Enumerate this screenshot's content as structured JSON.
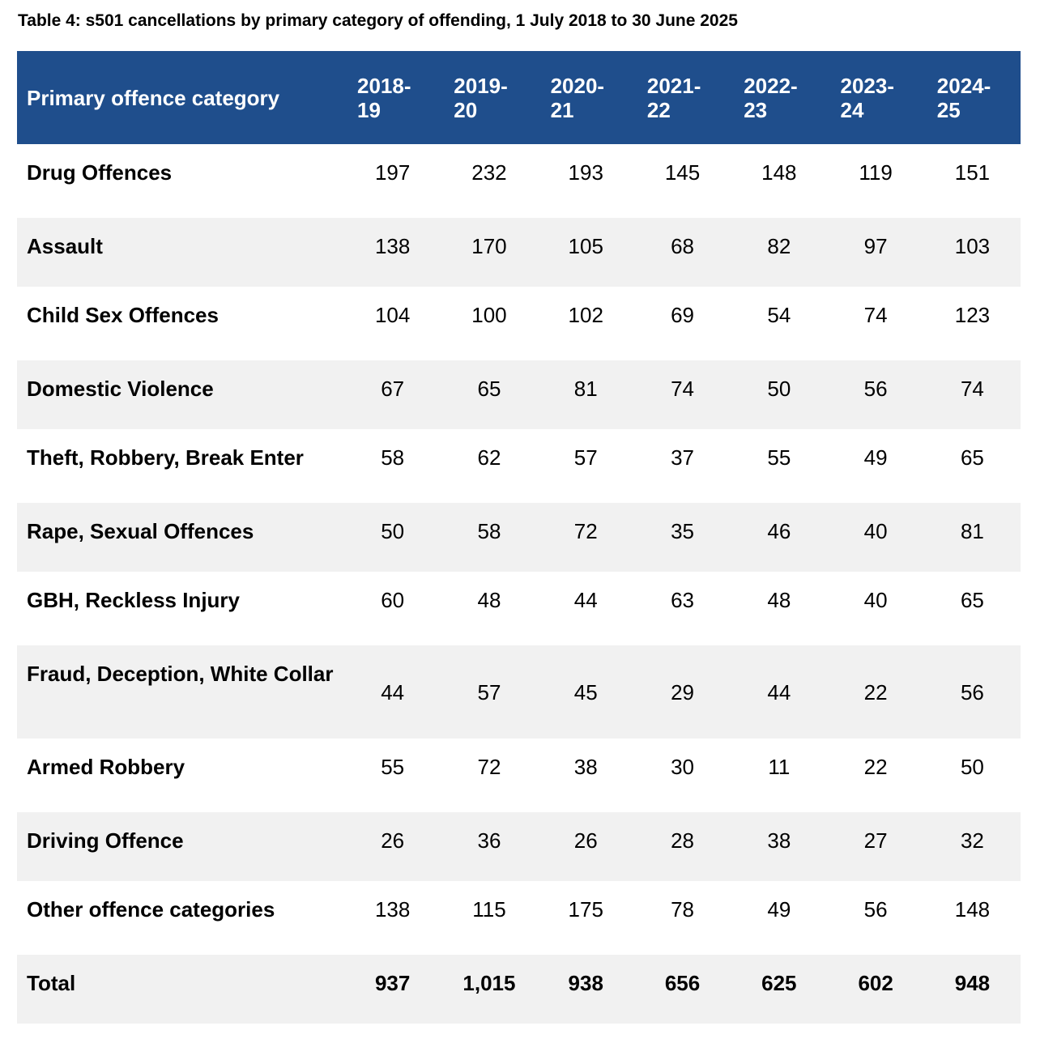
{
  "caption": "Table 4: s501 cancellations by primary category of offending, 1 July 2018 to 30 June 2025",
  "colors": {
    "header_bg": "#1f4e8c",
    "header_text": "#ffffff",
    "shaded_row": "#f1f1f1"
  },
  "header": {
    "category": "Primary offence category",
    "years": [
      "2018-19",
      "2019-20",
      "2020-21",
      "2021-22",
      "2022-23",
      "2023-24",
      "2024-25"
    ]
  },
  "rows": [
    {
      "category": "Drug Offences",
      "values": [
        "197",
        "232",
        "193",
        "145",
        "148",
        "119",
        "151"
      ]
    },
    {
      "category": "Assault",
      "values": [
        "138",
        "170",
        "105",
        "68",
        "82",
        "97",
        "103"
      ]
    },
    {
      "category": "Child Sex Offences",
      "values": [
        "104",
        "100",
        "102",
        "69",
        "54",
        "74",
        "123"
      ]
    },
    {
      "category": "Domestic Violence",
      "values": [
        "67",
        "65",
        "81",
        "74",
        "50",
        "56",
        "74"
      ]
    },
    {
      "category": "Theft, Robbery, Break Enter",
      "values": [
        "58",
        "62",
        "57",
        "37",
        "55",
        "49",
        "65"
      ]
    },
    {
      "category": "Rape, Sexual Offences",
      "values": [
        "50",
        "58",
        "72",
        "35",
        "46",
        "40",
        "81"
      ]
    },
    {
      "category": "GBH, Reckless Injury",
      "values": [
        "60",
        "48",
        "44",
        "63",
        "48",
        "40",
        "65"
      ]
    },
    {
      "category": "Fraud, Deception, White Collar",
      "values": [
        "44",
        "57",
        "45",
        "29",
        "44",
        "22",
        "56"
      ]
    },
    {
      "category": "Armed Robbery",
      "values": [
        "55",
        "72",
        "38",
        "30",
        "11",
        "22",
        "50"
      ]
    },
    {
      "category": "Driving Offence",
      "values": [
        "26",
        "36",
        "26",
        "28",
        "38",
        "27",
        "32"
      ]
    },
    {
      "category": "Other offence categories",
      "values": [
        "138",
        "115",
        "175",
        "78",
        "49",
        "56",
        "148"
      ]
    }
  ],
  "total": {
    "category": "Total",
    "values": [
      "937",
      "1,015",
      "938",
      "656",
      "625",
      "602",
      "948"
    ]
  }
}
